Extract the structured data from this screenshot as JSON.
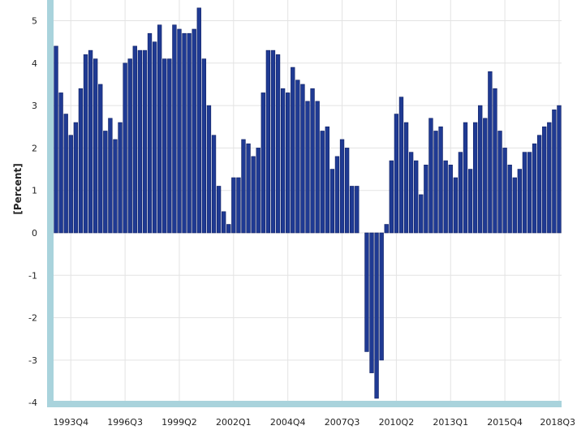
{
  "chart_data": {
    "type": "bar",
    "title": "",
    "xlabel": "",
    "ylabel": "[Percent]",
    "ylim": [
      -4,
      5.3
    ],
    "yticks": [
      "5",
      "4",
      "3",
      "2",
      "1",
      "0",
      "-1",
      "-2",
      "-3",
      "-4"
    ],
    "ytick_values": [
      5,
      4,
      3,
      2,
      1,
      0,
      -1,
      -2,
      -3,
      -4
    ],
    "grid": true,
    "legend": "none",
    "colors": {
      "bar": "#1f3a93",
      "bar_edge": "#0f1f63",
      "axis_frame": "#a9d3dc",
      "grid": "#e3e3e3"
    },
    "xtick_labels": [
      "1993Q4",
      "1996Q3",
      "1999Q2",
      "2002Q1",
      "2004Q4",
      "2007Q3",
      "2010Q2",
      "2013Q1",
      "2015Q4",
      "2018Q3"
    ],
    "categories": [
      "1993Q1",
      "1993Q2",
      "1993Q3",
      "1993Q4",
      "1994Q1",
      "1994Q2",
      "1994Q3",
      "1994Q4",
      "1995Q1",
      "1995Q2",
      "1995Q3",
      "1995Q4",
      "1996Q1",
      "1996Q2",
      "1996Q3",
      "1996Q4",
      "1997Q1",
      "1997Q2",
      "1997Q3",
      "1997Q4",
      "1998Q1",
      "1998Q2",
      "1998Q3",
      "1998Q4",
      "1999Q1",
      "1999Q2",
      "1999Q3",
      "1999Q4",
      "2000Q1",
      "2000Q2",
      "2000Q3",
      "2000Q4",
      "2001Q1",
      "2001Q2",
      "2001Q3",
      "2001Q4",
      "2002Q1",
      "2002Q2",
      "2002Q3",
      "2002Q4",
      "2003Q1",
      "2003Q2",
      "2003Q3",
      "2003Q4",
      "2004Q1",
      "2004Q2",
      "2004Q3",
      "2004Q4",
      "2005Q1",
      "2005Q2",
      "2005Q3",
      "2005Q4",
      "2006Q1",
      "2006Q2",
      "2006Q3",
      "2006Q4",
      "2007Q1",
      "2007Q2",
      "2007Q3",
      "2007Q4",
      "2008Q1",
      "2008Q2",
      "2008Q3",
      "2008Q4",
      "2009Q1",
      "2009Q2",
      "2009Q3",
      "2009Q4",
      "2010Q1",
      "2010Q2",
      "2010Q3",
      "2010Q4",
      "2011Q1",
      "2011Q2",
      "2011Q3",
      "2011Q4",
      "2012Q1",
      "2012Q2",
      "2012Q3",
      "2012Q4",
      "2013Q1",
      "2013Q2",
      "2013Q3",
      "2013Q4",
      "2014Q1",
      "2014Q2",
      "2014Q3",
      "2014Q4",
      "2015Q1",
      "2015Q2",
      "2015Q3",
      "2015Q4",
      "2016Q1",
      "2016Q2",
      "2016Q3",
      "2016Q4",
      "2017Q1",
      "2017Q2",
      "2017Q3",
      "2017Q4",
      "2018Q1",
      "2018Q2",
      "2018Q3"
    ],
    "values": [
      4.4,
      3.3,
      2.8,
      2.3,
      2.6,
      3.4,
      4.2,
      4.3,
      4.1,
      3.5,
      2.4,
      2.7,
      2.2,
      2.6,
      4.0,
      4.1,
      4.4,
      4.3,
      4.3,
      4.7,
      4.5,
      4.9,
      4.1,
      4.1,
      4.9,
      4.8,
      4.7,
      4.7,
      4.8,
      5.3,
      4.1,
      3.0,
      2.3,
      1.1,
      0.5,
      0.2,
      1.3,
      1.3,
      2.2,
      2.1,
      1.8,
      2.0,
      3.3,
      4.3,
      4.3,
      4.2,
      3.4,
      3.3,
      3.9,
      3.6,
      3.5,
      3.1,
      3.4,
      3.1,
      2.4,
      2.5,
      1.5,
      1.8,
      2.2,
      2.0,
      1.1,
      1.1,
      0.0,
      -2.8,
      -3.3,
      -3.9,
      -3.0,
      0.2,
      1.7,
      2.8,
      3.2,
      2.6,
      1.9,
      1.7,
      0.9,
      1.6,
      2.7,
      2.4,
      2.5,
      1.7,
      1.6,
      1.3,
      1.9,
      2.6,
      1.5,
      2.6,
      3.0,
      2.7,
      3.8,
      3.4,
      2.4,
      2.0,
      1.6,
      1.3,
      1.5,
      1.9,
      1.9,
      2.1,
      2.3,
      2.5,
      2.6,
      2.9,
      3.0
    ]
  }
}
